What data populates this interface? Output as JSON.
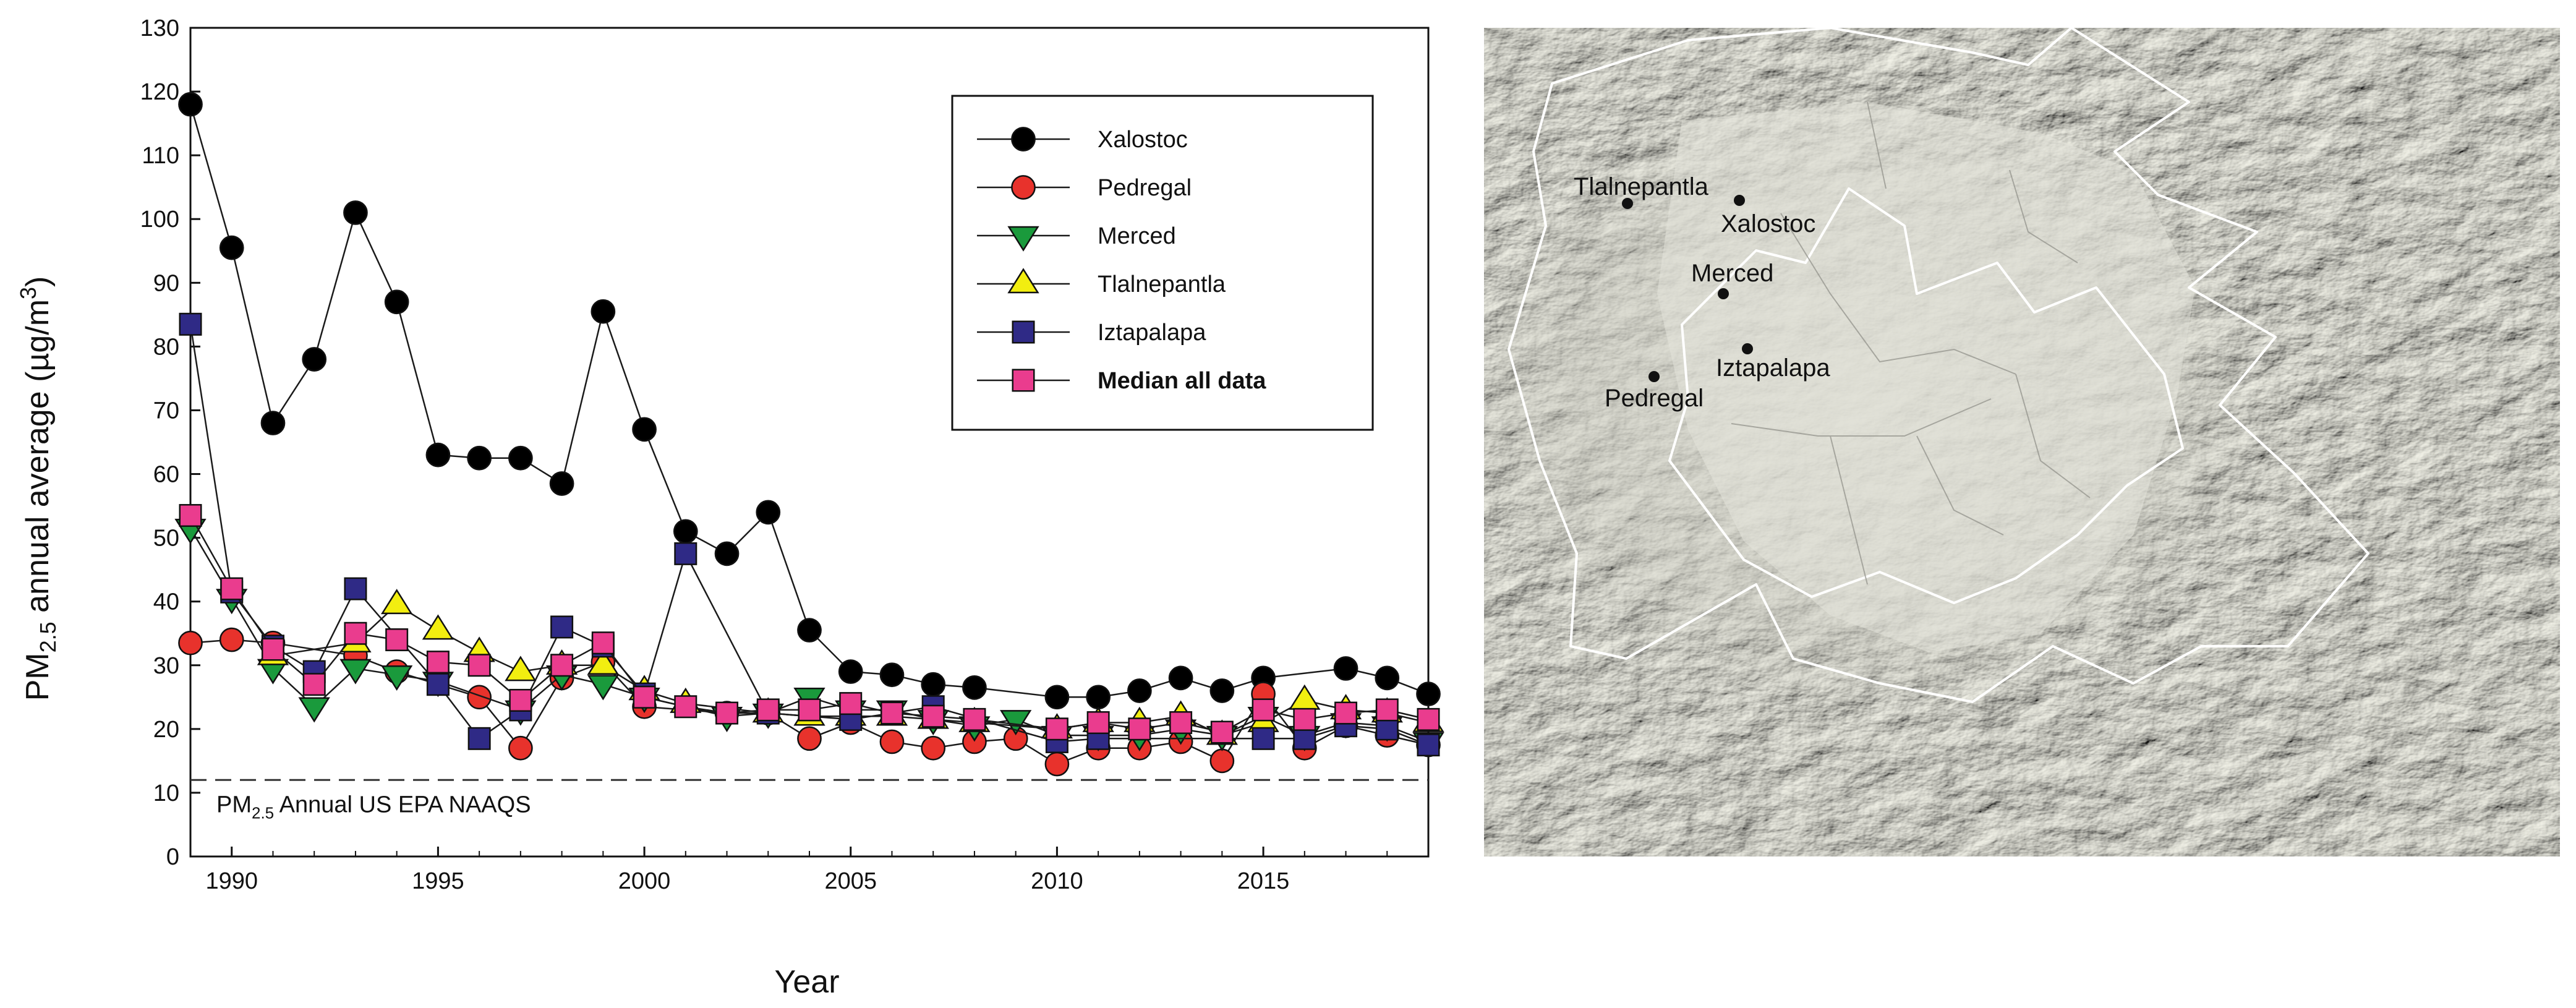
{
  "chart_data": {
    "type": "line",
    "title": "",
    "xlabel": "Year",
    "ylabel": "PM2.5 annual average (µg/m3)",
    "ylabel_main": "PM",
    "ylabel_sub": "2.5",
    "ylabel_rest": " annual average (µg/m",
    "ylabel_sup": "3",
    "ylabel_end": ")",
    "xlim": [
      1989,
      2019
    ],
    "ylim": [
      0,
      130
    ],
    "xticks": [
      1990,
      1995,
      2000,
      2005,
      2010,
      2015
    ],
    "yticks": [
      0,
      10,
      20,
      30,
      40,
      50,
      60,
      70,
      80,
      90,
      100,
      110,
      120,
      130
    ],
    "legend_position": "top-right",
    "grid": false,
    "x": [
      1989,
      1990,
      1991,
      1992,
      1993,
      1994,
      1995,
      1996,
      1997,
      1998,
      1999,
      2000,
      2001,
      2002,
      2003,
      2004,
      2005,
      2006,
      2007,
      2008,
      2009,
      2010,
      2011,
      2012,
      2013,
      2014,
      2015,
      2016,
      2017,
      2018,
      2019
    ],
    "series": [
      {
        "name": "Xalostoc",
        "marker": "circle",
        "color": "#000000",
        "values": [
          118,
          95.5,
          68,
          78,
          101,
          87,
          63,
          62.5,
          62.5,
          58.5,
          85.5,
          67,
          51,
          47.5,
          54,
          35.5,
          29,
          28.5,
          27,
          26.5,
          null,
          25,
          25,
          26,
          28,
          26,
          28,
          null,
          29.5,
          28,
          25.5
        ]
      },
      {
        "name": "Pedregal",
        "marker": "circle",
        "color": "#e8322c",
        "values": [
          33.5,
          34,
          33.5,
          null,
          31.5,
          29,
          null,
          25,
          17,
          28,
          30.5,
          23.5,
          null,
          22.5,
          22.5,
          18.5,
          21,
          18,
          17,
          18,
          18.5,
          14.5,
          17,
          17,
          18,
          15,
          25.5,
          17,
          20.5,
          19,
          17.5
        ]
      },
      {
        "name": "Merced",
        "marker": "triangle-down",
        "color": "#1a9a3c",
        "values": [
          51.5,
          40.5,
          29.5,
          23.5,
          29.5,
          28.5,
          27.5,
          null,
          23,
          28.5,
          27,
          25,
          null,
          22,
          22.5,
          25,
          23,
          23,
          21.5,
          20.5,
          21.5,
          19,
          19,
          19,
          20,
          19,
          22,
          19,
          21,
          20.5,
          18
        ]
      },
      {
        "name": "Tlalnepantla",
        "marker": "triangle-up",
        "color": "#f2ee10",
        "values": [
          null,
          null,
          31.5,
          null,
          33.5,
          39.5,
          35.5,
          32,
          29,
          30,
          30,
          26,
          24,
          null,
          22.5,
          22,
          22,
          22,
          21.5,
          21,
          null,
          20,
          21,
          21,
          22,
          19,
          21,
          24.5,
          23,
          22.5,
          21
        ]
      },
      {
        "name": "Iztapalapa",
        "marker": "square",
        "color": "#2f2a86",
        "values": [
          83.5,
          41.5,
          33,
          29,
          42,
          null,
          27,
          18.5,
          23,
          36,
          33,
          25.5,
          47.5,
          null,
          22.5,
          null,
          21.5,
          null,
          23.5,
          null,
          null,
          18,
          18.5,
          null,
          null,
          null,
          18.5,
          18.5,
          20.5,
          20,
          17.5
        ]
      },
      {
        "name": "Median all data",
        "marker": "square",
        "color": "#ea3c8e",
        "bold": true,
        "values": [
          53.5,
          42,
          32.5,
          27,
          35,
          34,
          30.5,
          30,
          24.5,
          30,
          33.5,
          25,
          23.5,
          22.5,
          23,
          23,
          24,
          22.5,
          22,
          21.5,
          null,
          20,
          21,
          20,
          21,
          19.5,
          23,
          21.5,
          22.5,
          23,
          21.5
        ]
      }
    ],
    "reference_line": {
      "value": 12,
      "label_main": "PM",
      "label_sub": "2.5",
      "label_rest": " Annual US EPA NAAQS"
    }
  },
  "map": {
    "labels": [
      "Tlalnepantla",
      "Xalostoc",
      "Merced",
      "Iztapalapa",
      "Pedregal"
    ]
  }
}
